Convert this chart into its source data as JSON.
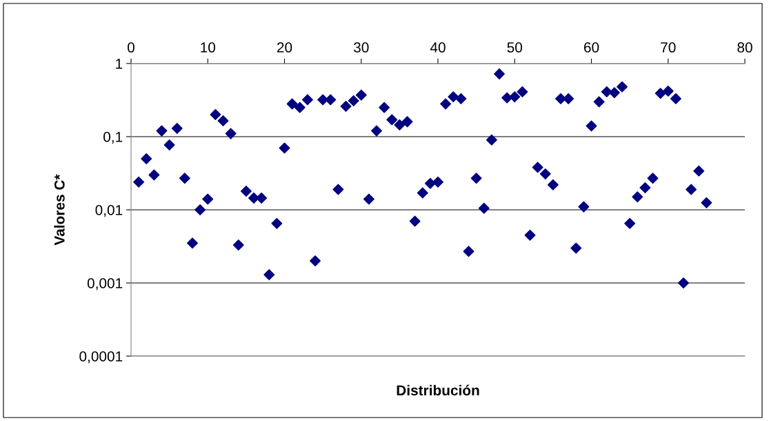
{
  "chart_data": {
    "type": "scatter",
    "xlabel": "Distribución",
    "ylabel": "Valores C*",
    "x": [
      1,
      2,
      3,
      4,
      5,
      6,
      7,
      8,
      9,
      10,
      11,
      12,
      13,
      14,
      15,
      16,
      17,
      18,
      19,
      20,
      21,
      22,
      23,
      24,
      25,
      26,
      27,
      28,
      29,
      30,
      31,
      32,
      33,
      34,
      35,
      36,
      37,
      38,
      39,
      40,
      41,
      42,
      43,
      44,
      45,
      46,
      47,
      48,
      49,
      50,
      51,
      52,
      53,
      54,
      55,
      56,
      57,
      58,
      59,
      60,
      61,
      62,
      63,
      64,
      65,
      66,
      67,
      68,
      69,
      70,
      71,
      72,
      73,
      74,
      75
    ],
    "series": [
      {
        "color": "#000080",
        "values": [
          0.024,
          0.05,
          0.03,
          0.12,
          0.077,
          0.13,
          0.027,
          0.0035,
          0.01,
          0.014,
          0.2,
          0.165,
          0.11,
          0.0033,
          0.018,
          0.0145,
          0.0145,
          0.0013,
          0.0065,
          0.07,
          0.28,
          0.25,
          0.32,
          0.002,
          0.32,
          0.32,
          0.019,
          0.26,
          0.31,
          0.37,
          0.014,
          0.12,
          0.25,
          0.17,
          0.145,
          0.16,
          0.007,
          0.017,
          0.023,
          0.024,
          0.28,
          0.35,
          0.33,
          0.0027,
          0.027,
          0.0105,
          0.09,
          0.72,
          0.34,
          0.35,
          0.41,
          0.0045,
          0.038,
          0.031,
          0.022,
          0.33,
          0.33,
          0.003,
          0.011,
          0.14,
          0.3,
          0.41,
          0.4,
          0.48,
          0.0065,
          0.015,
          0.02,
          0.027,
          0.39,
          0.42,
          0.33,
          0.001,
          0.019,
          0.034,
          0.0125
        ]
      }
    ],
    "log": "y",
    "marker": "diamond",
    "grid": "y",
    "legend": false,
    "xlim": [
      0,
      80
    ],
    "xticks": [
      0,
      10,
      20,
      30,
      40,
      50,
      60,
      70,
      80
    ],
    "ylim": [
      0.0001,
      1
    ],
    "yticks": [
      {
        "value": 0.0001,
        "label": "0,0001"
      },
      {
        "value": 0.001,
        "label": "0,001"
      },
      {
        "value": 0.01,
        "label": "0,01"
      },
      {
        "value": 0.1,
        "label": "0,1"
      },
      {
        "value": 1,
        "label": "1"
      }
    ]
  }
}
